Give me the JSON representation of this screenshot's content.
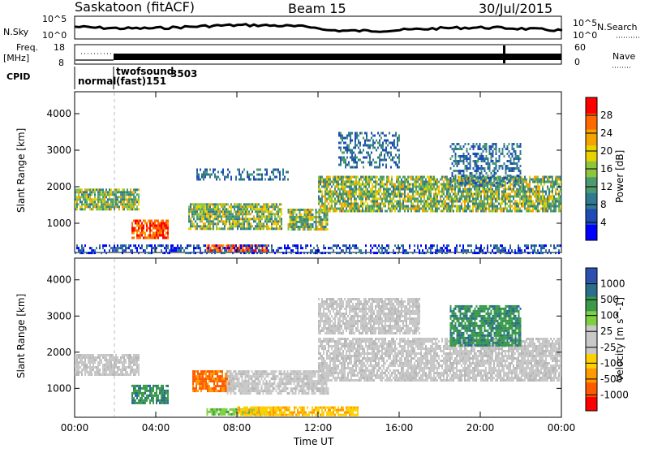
{
  "header": {
    "station": "Saskatoon (fitACF)",
    "beam": "Beam 15",
    "date": "30/Jul/2015"
  },
  "strips": {
    "nsky_label": "N.Sky",
    "nsky_ticks": [
      "10^5",
      "10^0"
    ],
    "nsearch_label": "N.Search",
    "freq_label_1": "Freq.",
    "freq_label_2": "[MHz]",
    "freq_ticks": [
      "18",
      "8"
    ],
    "nave_ticks": [
      "60",
      "0"
    ],
    "nave_label": "Nave",
    "cpid_label": "CPID",
    "cpid_normal": "normal",
    "cpid_twofsound": "twofsound",
    "cpid_fast": "(fast)",
    "cpid_id_1": "3503",
    "cpid_id_2": "151"
  },
  "colors": {
    "power_scale": [
      "#0000ff",
      "#1e4cb4",
      "#2f7a90",
      "#4c9a6e",
      "#8cc63f",
      "#e8d200",
      "#f5a300",
      "#ff6a00",
      "#ff0000"
    ],
    "velocity_scale": [
      "#ff0000",
      "#ff5a00",
      "#ff9a00",
      "#ffd000",
      "#c8c8c8",
      "#c8c8c8",
      "#7fd040",
      "#3a9a4a",
      "#2a6e8c",
      "#2c4fb0"
    ]
  },
  "chart_data": [
    {
      "type": "heatmap",
      "title": "",
      "ylabel": "Slant Range [km]",
      "xlabel": "",
      "y_ticks": [
        "1000",
        "2000",
        "3000",
        "4000"
      ],
      "ylim": [
        200,
        4600
      ],
      "xlim_hours": [
        0,
        24
      ],
      "colorbar_label": "Power [dB]",
      "colorbar_ticks": [
        "4",
        "8",
        "12",
        "16",
        "20",
        "24",
        "28"
      ],
      "colorbar_range": [
        0,
        32
      ],
      "echo_regions": [
        {
          "t0": 0.0,
          "t1": 3.2,
          "r0": 1400,
          "r1": 1950,
          "level": "medium"
        },
        {
          "t0": 2.8,
          "t1": 4.6,
          "r0": 600,
          "r1": 1100,
          "level": "strong"
        },
        {
          "t0": 5.6,
          "t1": 10.2,
          "r0": 850,
          "r1": 1550,
          "level": "medium"
        },
        {
          "t0": 6.5,
          "t1": 9.5,
          "r0": 250,
          "r1": 420,
          "level": "strong"
        },
        {
          "t0": 6.0,
          "t1": 10.5,
          "r0": 2200,
          "r1": 2500,
          "level": "weak"
        },
        {
          "t0": 10.5,
          "t1": 12.5,
          "r0": 850,
          "r1": 1400,
          "level": "medium"
        },
        {
          "t0": 12.0,
          "t1": 24.0,
          "r0": 1300,
          "r1": 2300,
          "level": "medium"
        },
        {
          "t0": 13.0,
          "t1": 16.0,
          "r0": 2500,
          "r1": 3500,
          "level": "weak"
        },
        {
          "t0": 18.5,
          "t1": 22.0,
          "r0": 2000,
          "r1": 3200,
          "level": "weak"
        },
        {
          "t0": 0.0,
          "t1": 24.0,
          "r0": 200,
          "r1": 420,
          "level": "noise"
        }
      ]
    },
    {
      "type": "heatmap",
      "title": "",
      "ylabel": "Slant Range [km]",
      "xlabel": "Time UT",
      "x_ticks": [
        "00:00",
        "04:00",
        "08:00",
        "12:00",
        "16:00",
        "20:00",
        "00:00"
      ],
      "y_ticks": [
        "1000",
        "2000",
        "3000",
        "4000"
      ],
      "ylim": [
        200,
        4600
      ],
      "xlim_hours": [
        0,
        24
      ],
      "colorbar_label": "Velocity [m s^-1]",
      "colorbar_ticks": [
        "-1000",
        "-500",
        "-100",
        "-25",
        "25",
        "100",
        "500",
        "1000"
      ],
      "colorbar_range": [
        -1200,
        1200
      ],
      "echo_regions": [
        {
          "t0": 0.0,
          "t1": 3.2,
          "r0": 1400,
          "r1": 1950,
          "velocity": "near-zero"
        },
        {
          "t0": 2.8,
          "t1": 4.6,
          "r0": 600,
          "r1": 1100,
          "velocity": "positive"
        },
        {
          "t0": 5.8,
          "t1": 7.8,
          "r0": 900,
          "r1": 1500,
          "velocity": "negative"
        },
        {
          "t0": 6.5,
          "t1": 9.5,
          "r0": 250,
          "r1": 450,
          "velocity": "slightly-positive"
        },
        {
          "t0": 8.0,
          "t1": 14.0,
          "r0": 250,
          "r1": 500,
          "velocity": "slightly-negative"
        },
        {
          "t0": 7.5,
          "t1": 12.5,
          "r0": 850,
          "r1": 1500,
          "velocity": "near-zero"
        },
        {
          "t0": 12.0,
          "t1": 24.0,
          "r0": 1200,
          "r1": 2400,
          "velocity": "near-zero"
        },
        {
          "t0": 12.0,
          "t1": 17.0,
          "r0": 2500,
          "r1": 3500,
          "velocity": "near-zero"
        },
        {
          "t0": 18.5,
          "t1": 22.0,
          "r0": 2200,
          "r1": 3300,
          "velocity": "positive"
        }
      ]
    }
  ]
}
